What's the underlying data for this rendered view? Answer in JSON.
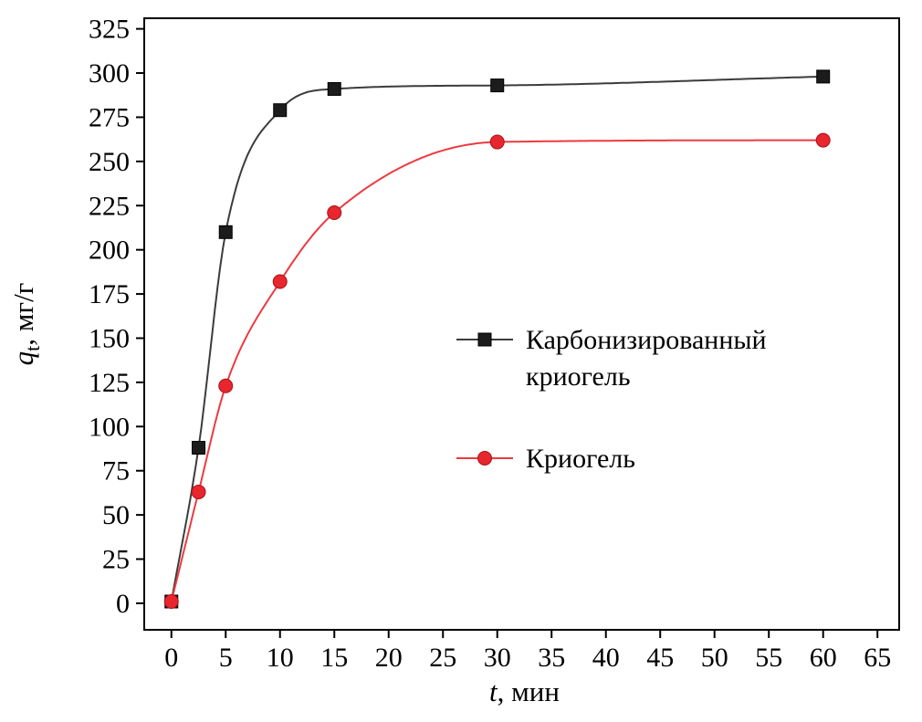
{
  "page": {
    "background": "#ffffff"
  },
  "chart_data": {
    "type": "scatter",
    "title": "",
    "xlabel": {
      "italic": "t",
      "rest": ", мин"
    },
    "ylabel": {
      "italic": "q",
      "sub": "t",
      "rest": ", мг/г"
    },
    "xlim": [
      -2.5,
      67
    ],
    "ylim": [
      -15,
      331
    ],
    "xticks": [
      0,
      5,
      10,
      15,
      20,
      25,
      30,
      35,
      40,
      45,
      50,
      55,
      60,
      65
    ],
    "yticks": [
      0,
      25,
      50,
      75,
      100,
      125,
      150,
      175,
      200,
      225,
      250,
      275,
      300,
      325
    ],
    "grid": false,
    "axis_color": "#000000",
    "legend_position": "middle-right",
    "series": [
      {
        "name": "Карбонизированный криогель",
        "marker": "square",
        "marker_color": "#1c1c1c",
        "marker_edge": "#000000",
        "line_color": "#3c3c3c",
        "x": [
          0,
          2.5,
          5,
          10,
          15,
          30,
          60
        ],
        "y": [
          1,
          88,
          210,
          279,
          291,
          293,
          298
        ]
      },
      {
        "name": "Криогель",
        "marker": "circle",
        "marker_color": "#e8262d",
        "marker_edge": "#a81218",
        "line_color": "#ed3a40",
        "x": [
          0,
          2.5,
          5,
          10,
          15,
          30,
          60
        ],
        "y": [
          1,
          63,
          123,
          182,
          221,
          261,
          262
        ]
      }
    ],
    "legend": {
      "items": [
        {
          "series": 0,
          "label_lines": [
            "Карбонизированный",
            "криогель"
          ]
        },
        {
          "series": 1,
          "label_lines": [
            "Криогель"
          ]
        }
      ]
    }
  }
}
